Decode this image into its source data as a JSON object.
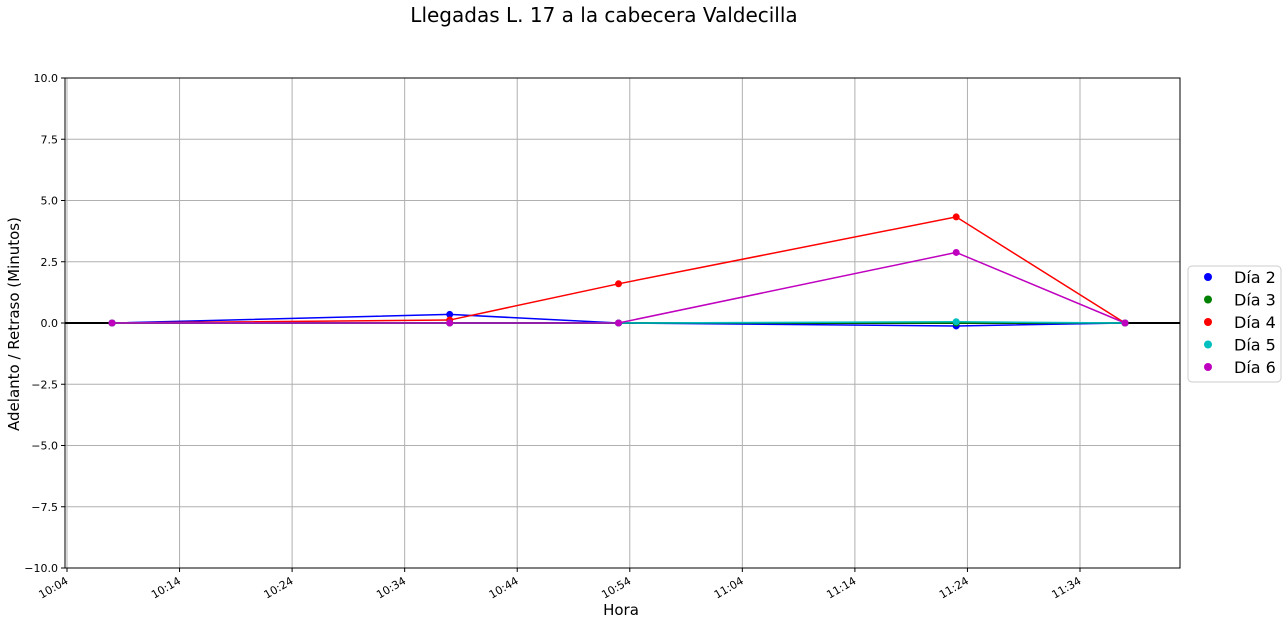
{
  "chart_data": {
    "type": "line",
    "title": "Llegadas L. 17 a la cabecera Valdecilla",
    "xlabel": "Hora",
    "ylabel": "Adelanto / Retraso (Minutos)",
    "xlim": [
      "10:04",
      "11:43"
    ],
    "ylim": [
      -10,
      10
    ],
    "x_ticks": [
      "10:04",
      "10:14",
      "10:24",
      "10:34",
      "10:44",
      "10:54",
      "11:04",
      "11:14",
      "11:24",
      "11:34"
    ],
    "y_ticks": [
      10.0,
      7.5,
      5.0,
      2.5,
      0.0,
      -2.5,
      -5.0,
      -7.5,
      -10.0
    ],
    "y_tick_labels": [
      "10.0",
      "7.5",
      "5.0",
      "2.5",
      "0.0",
      "−2.5",
      "−5.0",
      "−7.5",
      "−10.0"
    ],
    "grid": true,
    "legend_position": "right",
    "reference_line": 0,
    "series": [
      {
        "name": "Día 2",
        "color": "#0000ff",
        "points": [
          [
            "10:08",
            0.0
          ],
          [
            "10:38",
            0.35
          ],
          [
            "10:53",
            0.0
          ],
          [
            "11:23",
            -0.12
          ],
          [
            "11:38",
            0.0
          ]
        ]
      },
      {
        "name": "Día 3",
        "color": "#008000",
        "points": [
          [
            "10:08",
            0.0
          ],
          [
            "10:38",
            0.0
          ],
          [
            "10:53",
            0.0
          ],
          [
            "11:23",
            0.0
          ],
          [
            "11:38",
            0.0
          ]
        ]
      },
      {
        "name": "Día 4",
        "color": "#ff0000",
        "points": [
          [
            "10:08",
            0.0
          ],
          [
            "10:38",
            0.12
          ],
          [
            "10:53",
            1.6
          ],
          [
            "11:23",
            4.33
          ],
          [
            "11:38",
            0.0
          ]
        ]
      },
      {
        "name": "Día 5",
        "color": "#00bfbf",
        "points": [
          [
            "10:08",
            0.0
          ],
          [
            "10:38",
            0.0
          ],
          [
            "10:53",
            0.0
          ],
          [
            "11:23",
            0.05
          ],
          [
            "11:38",
            0.0
          ]
        ]
      },
      {
        "name": "Día 6",
        "color": "#bf00bf",
        "points": [
          [
            "10:08",
            0.0
          ],
          [
            "10:38",
            0.0
          ],
          [
            "10:53",
            0.0
          ],
          [
            "11:23",
            2.88
          ],
          [
            "11:38",
            0.0
          ]
        ]
      }
    ]
  }
}
